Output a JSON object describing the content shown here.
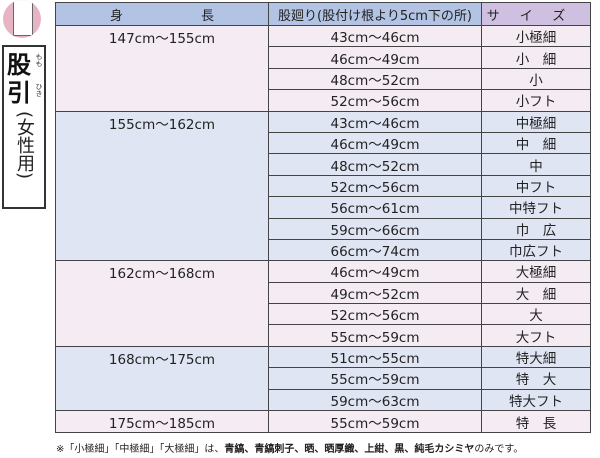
{
  "side": {
    "title": "股引",
    "ruby_1": "もも",
    "ruby_2": "ひき",
    "subtitle": "(女性用)"
  },
  "headers": {
    "height": "身　　　　　　長",
    "waist": "股廻り(股付け根より5cm下の所)",
    "size": "サイズ"
  },
  "groups": [
    {
      "height": "147cm～155cm",
      "rows": [
        [
          "43cm～46cm",
          "小極細"
        ],
        [
          "46cm～49cm",
          "小　細"
        ],
        [
          "48cm～52cm",
          "小"
        ],
        [
          "52cm～56cm",
          "小フト"
        ]
      ]
    },
    {
      "height": "155cm～162cm",
      "rows": [
        [
          "43cm～46cm",
          "中極細"
        ],
        [
          "46cm～49cm",
          "中　細"
        ],
        [
          "48cm～52cm",
          "中"
        ],
        [
          "52cm～56cm",
          "中フト"
        ],
        [
          "56cm～61cm",
          "中特フト"
        ],
        [
          "59cm～66cm",
          "巾　広"
        ],
        [
          "66cm～74cm",
          "巾広フト"
        ]
      ]
    },
    {
      "height": "162cm～168cm",
      "rows": [
        [
          "46cm～49cm",
          "大極細"
        ],
        [
          "49cm～52cm",
          "大　細"
        ],
        [
          "52cm～56cm",
          "大"
        ],
        [
          "55cm～59cm",
          "大フト"
        ]
      ]
    },
    {
      "height": "168cm～175cm",
      "rows": [
        [
          "51cm～55cm",
          "特大細"
        ],
        [
          "55cm～59cm",
          "特　大"
        ],
        [
          "59cm～63cm",
          "特大フト"
        ]
      ]
    },
    {
      "height": "175cm～185cm",
      "rows": [
        [
          "55cm～59cm",
          "特　長"
        ]
      ]
    }
  ],
  "note": {
    "prefix": "※「小極細」「中極細」「大極細」は、",
    "bold": "青縞、青縞刺子、晒、晒厚織、上紺、黒、純毛カシミヤ",
    "suffix": "のみです。"
  }
}
